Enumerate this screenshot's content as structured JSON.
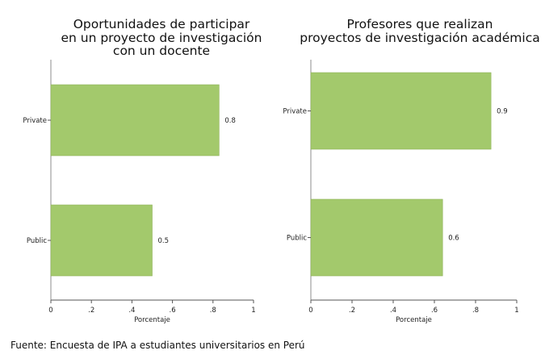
{
  "chart_data": [
    {
      "type": "bar",
      "orientation": "horizontal",
      "title": "Oportunidades de participar\nen un proyecto de investigación\ncon un docente",
      "categories": [
        "Private",
        "Public"
      ],
      "values": [
        0.83,
        0.5
      ],
      "data_labels": [
        "0.8",
        "0.5"
      ],
      "xlabel": "Porcentaje",
      "ylabel": "",
      "xlim": [
        0,
        1
      ],
      "xticks": [
        0,
        0.2,
        0.4,
        0.6,
        0.8,
        1
      ],
      "xtick_labels": [
        "0",
        ".2",
        ".4",
        ".6",
        ".8",
        "1"
      ],
      "grid": false,
      "bar_color": "#a3c96c"
    },
    {
      "type": "bar",
      "orientation": "horizontal",
      "title": "Profesores que realizan\nproyectos de investigación académica",
      "categories": [
        "Private",
        "Public"
      ],
      "values": [
        0.875,
        0.64
      ],
      "data_labels": [
        "0.9",
        "0.6"
      ],
      "xlabel": "Porcentaje",
      "ylabel": "",
      "xlim": [
        0,
        1
      ],
      "xticks": [
        0,
        0.2,
        0.4,
        0.6,
        0.8,
        1
      ],
      "xtick_labels": [
        "0",
        ".2",
        ".4",
        ".6",
        ".8",
        "1"
      ],
      "grid": false,
      "bar_color": "#a3c96c"
    }
  ],
  "footer": {
    "source": "Fuente: Encuesta de IPA a estudiantes universitarios en Perú"
  }
}
